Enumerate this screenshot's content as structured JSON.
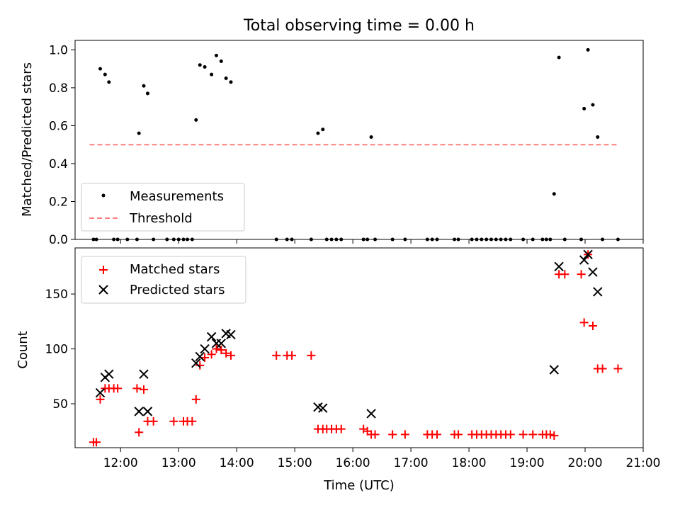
{
  "chart_data": [
    {
      "type": "scatter",
      "title": "Total observing time = 0.00 h",
      "xlabel": "",
      "ylabel": "Matched/Predicted stars",
      "xlim": [
        "11:13",
        "21:00"
      ],
      "ylim": [
        0.0,
        1.05
      ],
      "yticks": [
        0.0,
        0.2,
        0.4,
        0.6,
        0.8,
        1.0
      ],
      "ytick_labels": [
        "0.0",
        "0.2",
        "0.4",
        "0.6",
        "0.8",
        "1.0"
      ],
      "grid": false,
      "legend_position": "lower-left",
      "colors": {
        "measurements": "#000000",
        "threshold": "#ff7f7f"
      },
      "series": [
        {
          "name": "Measurements",
          "marker": "dot",
          "points": [
            {
              "x": "11:32",
              "y": 0.0
            },
            {
              "x": "11:35",
              "y": 0.0
            },
            {
              "x": "11:39",
              "y": 0.9
            },
            {
              "x": "11:44",
              "y": 0.87
            },
            {
              "x": "11:48",
              "y": 0.83
            },
            {
              "x": "11:53",
              "y": 0.0
            },
            {
              "x": "11:57",
              "y": 0.0
            },
            {
              "x": "12:07",
              "y": 0.0
            },
            {
              "x": "12:17",
              "y": 0.0
            },
            {
              "x": "12:19",
              "y": 0.56
            },
            {
              "x": "12:24",
              "y": 0.81
            },
            {
              "x": "12:28",
              "y": 0.77
            },
            {
              "x": "12:34",
              "y": 0.0
            },
            {
              "x": "12:48",
              "y": 0.0
            },
            {
              "x": "12:55",
              "y": 0.0
            },
            {
              "x": "13:00",
              "y": 0.0
            },
            {
              "x": "13:05",
              "y": 0.0
            },
            {
              "x": "13:09",
              "y": 0.0
            },
            {
              "x": "13:14",
              "y": 0.0
            },
            {
              "x": "13:18",
              "y": 0.63
            },
            {
              "x": "13:22",
              "y": 0.92
            },
            {
              "x": "13:27",
              "y": 0.91
            },
            {
              "x": "13:34",
              "y": 0.87
            },
            {
              "x": "13:39",
              "y": 0.97
            },
            {
              "x": "13:44",
              "y": 0.94
            },
            {
              "x": "13:49",
              "y": 0.85
            },
            {
              "x": "13:54",
              "y": 0.83
            },
            {
              "x": "14:41",
              "y": 0.0
            },
            {
              "x": "14:52",
              "y": 0.0
            },
            {
              "x": "14:57",
              "y": 0.0
            },
            {
              "x": "15:17",
              "y": 0.0
            },
            {
              "x": "15:24",
              "y": 0.56
            },
            {
              "x": "15:29",
              "y": 0.58
            },
            {
              "x": "15:33",
              "y": 0.0
            },
            {
              "x": "15:38",
              "y": 0.0
            },
            {
              "x": "15:43",
              "y": 0.0
            },
            {
              "x": "15:48",
              "y": 0.0
            },
            {
              "x": "16:11",
              "y": 0.0
            },
            {
              "x": "16:15",
              "y": 0.0
            },
            {
              "x": "16:19",
              "y": 0.54
            },
            {
              "x": "16:23",
              "y": 0.0
            },
            {
              "x": "16:41",
              "y": 0.0
            },
            {
              "x": "16:54",
              "y": 0.0
            },
            {
              "x": "17:17",
              "y": 0.0
            },
            {
              "x": "17:22",
              "y": 0.0
            },
            {
              "x": "17:27",
              "y": 0.0
            },
            {
              "x": "17:45",
              "y": 0.0
            },
            {
              "x": "17:49",
              "y": 0.0
            },
            {
              "x": "18:03",
              "y": 0.0
            },
            {
              "x": "18:08",
              "y": 0.0
            },
            {
              "x": "18:13",
              "y": 0.0
            },
            {
              "x": "18:18",
              "y": 0.0
            },
            {
              "x": "18:23",
              "y": 0.0
            },
            {
              "x": "18:28",
              "y": 0.0
            },
            {
              "x": "18:33",
              "y": 0.0
            },
            {
              "x": "18:38",
              "y": 0.0
            },
            {
              "x": "18:43",
              "y": 0.0
            },
            {
              "x": "18:56",
              "y": 0.0
            },
            {
              "x": "19:06",
              "y": 0.0
            },
            {
              "x": "19:16",
              "y": 0.0
            },
            {
              "x": "19:20",
              "y": 0.0
            },
            {
              "x": "19:24",
              "y": 0.0
            },
            {
              "x": "19:28",
              "y": 0.24
            },
            {
              "x": "19:33",
              "y": 0.96
            },
            {
              "x": "19:39",
              "y": 0.0
            },
            {
              "x": "19:56",
              "y": 0.0
            },
            {
              "x": "19:59",
              "y": 0.69
            },
            {
              "x": "20:03",
              "y": 1.0
            },
            {
              "x": "20:08",
              "y": 0.71
            },
            {
              "x": "20:13",
              "y": 0.54
            },
            {
              "x": "20:18",
              "y": 0.0
            },
            {
              "x": "20:34",
              "y": 0.0
            }
          ]
        },
        {
          "name": "Threshold",
          "style": "dashed-line",
          "points": [
            {
              "x": "11:28",
              "y": 0.5
            },
            {
              "x": "20:34",
              "y": 0.5
            }
          ]
        }
      ]
    },
    {
      "type": "scatter",
      "title": "",
      "xlabel": "Time (UTC)",
      "ylabel": "Count",
      "xlim": [
        "11:13",
        "21:00"
      ],
      "ylim": [
        10,
        192
      ],
      "xticks": [
        "12:00",
        "13:00",
        "14:00",
        "15:00",
        "16:00",
        "17:00",
        "18:00",
        "19:00",
        "20:00",
        "21:00"
      ],
      "yticks": [
        50,
        100,
        150
      ],
      "ytick_labels": [
        "50",
        "100",
        "150"
      ],
      "grid": false,
      "legend_position": "top-left",
      "colors": {
        "matched": "#ff0000",
        "predicted": "#000000"
      },
      "series": [
        {
          "name": "Matched stars",
          "marker": "plus",
          "points": [
            {
              "x": "11:32",
              "y": 15
            },
            {
              "x": "11:35",
              "y": 15
            },
            {
              "x": "11:39",
              "y": 54
            },
            {
              "x": "11:44",
              "y": 64
            },
            {
              "x": "11:48",
              "y": 64
            },
            {
              "x": "11:53",
              "y": 64
            },
            {
              "x": "11:57",
              "y": 64
            },
            {
              "x": "12:17",
              "y": 64
            },
            {
              "x": "12:19",
              "y": 24
            },
            {
              "x": "12:24",
              "y": 63
            },
            {
              "x": "12:28",
              "y": 34
            },
            {
              "x": "12:34",
              "y": 34
            },
            {
              "x": "12:55",
              "y": 34
            },
            {
              "x": "13:05",
              "y": 34
            },
            {
              "x": "13:09",
              "y": 34
            },
            {
              "x": "13:14",
              "y": 34
            },
            {
              "x": "13:18",
              "y": 54
            },
            {
              "x": "13:22",
              "y": 85
            },
            {
              "x": "13:27",
              "y": 92
            },
            {
              "x": "13:34",
              "y": 95
            },
            {
              "x": "13:39",
              "y": 100
            },
            {
              "x": "13:44",
              "y": 99
            },
            {
              "x": "13:49",
              "y": 96
            },
            {
              "x": "13:54",
              "y": 94
            },
            {
              "x": "14:41",
              "y": 94
            },
            {
              "x": "14:52",
              "y": 94
            },
            {
              "x": "14:57",
              "y": 94
            },
            {
              "x": "15:17",
              "y": 94
            },
            {
              "x": "15:24",
              "y": 27
            },
            {
              "x": "15:29",
              "y": 27
            },
            {
              "x": "15:33",
              "y": 27
            },
            {
              "x": "15:38",
              "y": 27
            },
            {
              "x": "15:43",
              "y": 27
            },
            {
              "x": "15:48",
              "y": 27
            },
            {
              "x": "16:11",
              "y": 27
            },
            {
              "x": "16:15",
              "y": 25
            },
            {
              "x": "16:19",
              "y": 22
            },
            {
              "x": "16:23",
              "y": 22
            },
            {
              "x": "16:41",
              "y": 22
            },
            {
              "x": "16:54",
              "y": 22
            },
            {
              "x": "17:17",
              "y": 22
            },
            {
              "x": "17:22",
              "y": 22
            },
            {
              "x": "17:27",
              "y": 22
            },
            {
              "x": "17:45",
              "y": 22
            },
            {
              "x": "17:49",
              "y": 22
            },
            {
              "x": "18:03",
              "y": 22
            },
            {
              "x": "18:08",
              "y": 22
            },
            {
              "x": "18:13",
              "y": 22
            },
            {
              "x": "18:18",
              "y": 22
            },
            {
              "x": "18:23",
              "y": 22
            },
            {
              "x": "18:28",
              "y": 22
            },
            {
              "x": "18:33",
              "y": 22
            },
            {
              "x": "18:38",
              "y": 22
            },
            {
              "x": "18:43",
              "y": 22
            },
            {
              "x": "18:56",
              "y": 22
            },
            {
              "x": "19:06",
              "y": 22
            },
            {
              "x": "19:16",
              "y": 22
            },
            {
              "x": "19:20",
              "y": 22
            },
            {
              "x": "19:24",
              "y": 22
            },
            {
              "x": "19:28",
              "y": 21
            },
            {
              "x": "19:33",
              "y": 168
            },
            {
              "x": "19:39",
              "y": 168
            },
            {
              "x": "19:56",
              "y": 168
            },
            {
              "x": "19:59",
              "y": 124
            },
            {
              "x": "20:03",
              "y": 186
            },
            {
              "x": "20:08",
              "y": 121
            },
            {
              "x": "20:13",
              "y": 82
            },
            {
              "x": "20:18",
              "y": 82
            },
            {
              "x": "20:34",
              "y": 82
            }
          ]
        },
        {
          "name": "Predicted stars",
          "marker": "x",
          "points": [
            {
              "x": "11:39",
              "y": 60
            },
            {
              "x": "11:44",
              "y": 74
            },
            {
              "x": "11:48",
              "y": 77
            },
            {
              "x": "12:19",
              "y": 43
            },
            {
              "x": "12:24",
              "y": 77
            },
            {
              "x": "12:28",
              "y": 43
            },
            {
              "x": "13:18",
              "y": 87
            },
            {
              "x": "13:22",
              "y": 93
            },
            {
              "x": "13:27",
              "y": 100
            },
            {
              "x": "13:34",
              "y": 111
            },
            {
              "x": "13:39",
              "y": 105
            },
            {
              "x": "13:44",
              "y": 105
            },
            {
              "x": "13:49",
              "y": 114
            },
            {
              "x": "13:54",
              "y": 113
            },
            {
              "x": "15:24",
              "y": 47
            },
            {
              "x": "15:29",
              "y": 46
            },
            {
              "x": "16:19",
              "y": 41
            },
            {
              "x": "19:28",
              "y": 81
            },
            {
              "x": "19:33",
              "y": 175
            },
            {
              "x": "19:59",
              "y": 181
            },
            {
              "x": "20:03",
              "y": 186
            },
            {
              "x": "20:08",
              "y": 170
            },
            {
              "x": "20:13",
              "y": 152
            }
          ]
        }
      ]
    }
  ]
}
